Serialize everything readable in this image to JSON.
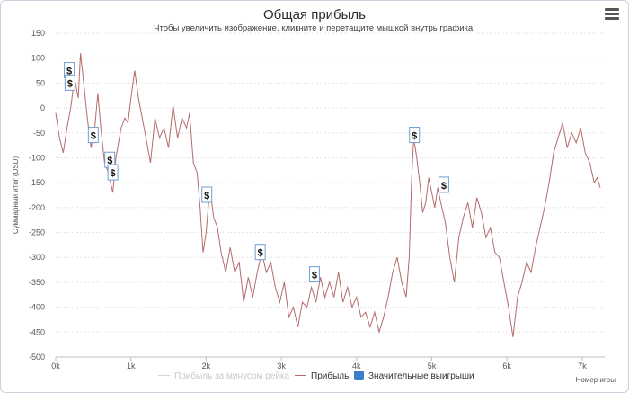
{
  "chart": {
    "title": "Общая прибыль",
    "subtitle": "Чтобы увеличить изображение, кликните и перетащите мышкой внутрь графика.",
    "menu_icon": "hamburger-menu-icon"
  },
  "legend": {
    "items": [
      {
        "label": "Прибыль за минусом рейка",
        "color": "#cfcfcf",
        "kind": "line",
        "state": "hidden"
      },
      {
        "label": "Прибыль",
        "color": "#b56a6a",
        "kind": "line",
        "state": "visible"
      },
      {
        "label": "Значительные выигрыши",
        "color": "#3a7fc8",
        "kind": "box",
        "state": "visible"
      }
    ]
  },
  "chart_data": {
    "type": "line",
    "title": "Общая прибыль",
    "subtitle": "Чтобы увеличить изображение, кликните и перетащите мышкой внутрь графика.",
    "xlabel": "Номер игры",
    "ylabel": "Суммарный итог (USD)",
    "xlim": [
      0,
      7300
    ],
    "ylim": [
      -500,
      150
    ],
    "x_ticks": [
      0,
      1000,
      2000,
      3000,
      4000,
      5000,
      6000,
      7000
    ],
    "x_tick_labels": [
      "0k",
      "1k",
      "2k",
      "3k",
      "4k",
      "5k",
      "6k",
      "7k"
    ],
    "y_ticks": [
      150,
      100,
      50,
      0,
      -50,
      -100,
      -150,
      -200,
      -250,
      -300,
      -350,
      -400,
      -450,
      -500
    ],
    "grid": "horizontal dotted",
    "legend_position": "bottom-center",
    "series": [
      {
        "name": "Прибыль",
        "color": "#b56a6a",
        "points": [
          [
            0,
            -10
          ],
          [
            50,
            -60
          ],
          [
            100,
            -90
          ],
          [
            150,
            -40
          ],
          [
            200,
            0
          ],
          [
            250,
            60
          ],
          [
            300,
            20
          ],
          [
            330,
            110
          ],
          [
            380,
            40
          ],
          [
            420,
            -20
          ],
          [
            470,
            -80
          ],
          [
            520,
            -40
          ],
          [
            560,
            30
          ],
          [
            600,
            -40
          ],
          [
            650,
            -110
          ],
          [
            700,
            -130
          ],
          [
            760,
            -170
          ],
          [
            800,
            -100
          ],
          [
            870,
            -40
          ],
          [
            920,
            -20
          ],
          [
            960,
            -30
          ],
          [
            1010,
            30
          ],
          [
            1050,
            75
          ],
          [
            1100,
            20
          ],
          [
            1150,
            -20
          ],
          [
            1200,
            -60
          ],
          [
            1260,
            -110
          ],
          [
            1320,
            -20
          ],
          [
            1380,
            -60
          ],
          [
            1440,
            -40
          ],
          [
            1500,
            -80
          ],
          [
            1560,
            5
          ],
          [
            1620,
            -60
          ],
          [
            1680,
            -20
          ],
          [
            1740,
            -40
          ],
          [
            1780,
            -10
          ],
          [
            1830,
            -110
          ],
          [
            1880,
            -130
          ],
          [
            1920,
            -200
          ],
          [
            1960,
            -290
          ],
          [
            2000,
            -250
          ],
          [
            2050,
            -160
          ],
          [
            2100,
            -220
          ],
          [
            2150,
            -240
          ],
          [
            2200,
            -290
          ],
          [
            2260,
            -330
          ],
          [
            2320,
            -280
          ],
          [
            2380,
            -330
          ],
          [
            2440,
            -310
          ],
          [
            2500,
            -390
          ],
          [
            2560,
            -340
          ],
          [
            2620,
            -380
          ],
          [
            2680,
            -330
          ],
          [
            2740,
            -290
          ],
          [
            2800,
            -330
          ],
          [
            2860,
            -310
          ],
          [
            2920,
            -360
          ],
          [
            2980,
            -390
          ],
          [
            3040,
            -350
          ],
          [
            3100,
            -420
          ],
          [
            3160,
            -400
          ],
          [
            3220,
            -440
          ],
          [
            3280,
            -390
          ],
          [
            3340,
            -400
          ],
          [
            3400,
            -360
          ],
          [
            3460,
            -390
          ],
          [
            3520,
            -340
          ],
          [
            3580,
            -380
          ],
          [
            3640,
            -350
          ],
          [
            3700,
            -380
          ],
          [
            3760,
            -330
          ],
          [
            3820,
            -390
          ],
          [
            3880,
            -360
          ],
          [
            3940,
            -400
          ],
          [
            4000,
            -380
          ],
          [
            4060,
            -420
          ],
          [
            4120,
            -410
          ],
          [
            4180,
            -440
          ],
          [
            4240,
            -410
          ],
          [
            4300,
            -450
          ],
          [
            4360,
            -420
          ],
          [
            4420,
            -380
          ],
          [
            4480,
            -330
          ],
          [
            4540,
            -300
          ],
          [
            4600,
            -350
          ],
          [
            4660,
            -380
          ],
          [
            4700,
            -300
          ],
          [
            4730,
            -150
          ],
          [
            4760,
            -60
          ],
          [
            4800,
            -100
          ],
          [
            4840,
            -150
          ],
          [
            4880,
            -210
          ],
          [
            4920,
            -190
          ],
          [
            4960,
            -140
          ],
          [
            5000,
            -170
          ],
          [
            5040,
            -200
          ],
          [
            5080,
            -160
          ],
          [
            5120,
            -190
          ],
          [
            5180,
            -230
          ],
          [
            5240,
            -300
          ],
          [
            5300,
            -350
          ],
          [
            5360,
            -260
          ],
          [
            5420,
            -220
          ],
          [
            5480,
            -190
          ],
          [
            5540,
            -240
          ],
          [
            5600,
            -180
          ],
          [
            5660,
            -210
          ],
          [
            5720,
            -260
          ],
          [
            5780,
            -240
          ],
          [
            5840,
            -290
          ],
          [
            5900,
            -300
          ],
          [
            5960,
            -350
          ],
          [
            6020,
            -400
          ],
          [
            6080,
            -460
          ],
          [
            6140,
            -380
          ],
          [
            6200,
            -350
          ],
          [
            6260,
            -310
          ],
          [
            6320,
            -330
          ],
          [
            6380,
            -280
          ],
          [
            6440,
            -240
          ],
          [
            6500,
            -200
          ],
          [
            6560,
            -150
          ],
          [
            6620,
            -90
          ],
          [
            6680,
            -60
          ],
          [
            6740,
            -30
          ],
          [
            6800,
            -80
          ],
          [
            6860,
            -50
          ],
          [
            6920,
            -70
          ],
          [
            6980,
            -40
          ],
          [
            7040,
            -90
          ],
          [
            7100,
            -110
          ],
          [
            7160,
            -150
          ],
          [
            7200,
            -140
          ],
          [
            7240,
            -160
          ]
        ]
      }
    ],
    "markers": [
      {
        "label": "$",
        "x": 180,
        "y": 75,
        "series": "Значительные выигрыши"
      },
      {
        "label": "$",
        "x": 190,
        "y": 50,
        "series": "Значительные выигрыши"
      },
      {
        "label": "$",
        "x": 500,
        "y": -55,
        "series": "Значительные выигрыши"
      },
      {
        "label": "$",
        "x": 720,
        "y": -105,
        "series": "Значительные выигрыши"
      },
      {
        "label": "$",
        "x": 760,
        "y": -130,
        "series": "Значительные выигрыши"
      },
      {
        "label": "$",
        "x": 2010,
        "y": -175,
        "series": "Значительные выигрыши"
      },
      {
        "label": "$",
        "x": 2720,
        "y": -290,
        "series": "Значительные выигрыши"
      },
      {
        "label": "$",
        "x": 3440,
        "y": -335,
        "series": "Значительные выигрыши"
      },
      {
        "label": "$",
        "x": 4770,
        "y": -55,
        "series": "Значительные выигрыши"
      },
      {
        "label": "$",
        "x": 5160,
        "y": -155,
        "series": "Значительные выигрыши"
      }
    ]
  }
}
